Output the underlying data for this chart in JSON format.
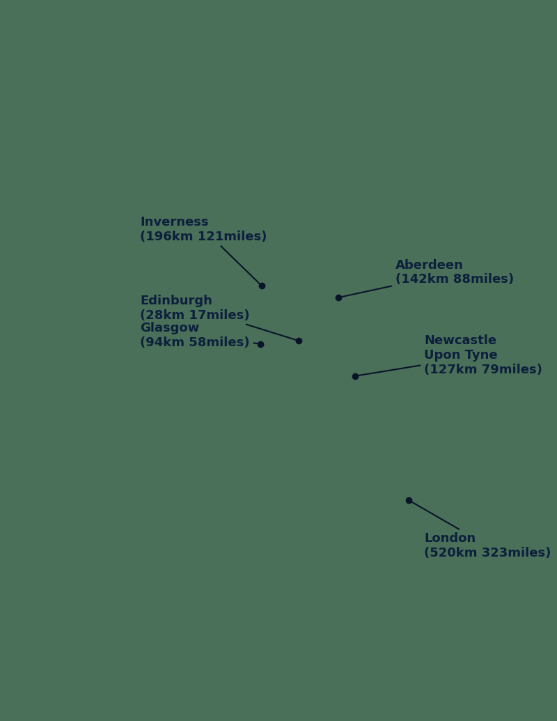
{
  "background_color": "#4a7059",
  "land_color": "#5bcece",
  "land_edge_color": "#3aadad",
  "annotation_color": "#0d1f3c",
  "dot_color": "#0a1428",
  "figsize": [
    8.0,
    10.35
  ],
  "dpi": 100,
  "locations": [
    {
      "name": "Inverness",
      "label_line1": "Inverness",
      "label_line2": "(196km 121miles)",
      "lon": -4.22,
      "lat": 57.48,
      "text_lon": -7.6,
      "text_lat": 59.05,
      "text_ha": "left",
      "fontsize": 13
    },
    {
      "name": "Aberdeen",
      "label_line1": "Aberdeen",
      "label_line2": "(142km 88miles)",
      "lon": -2.09,
      "lat": 57.15,
      "text_lon": -0.5,
      "text_lat": 57.85,
      "text_ha": "left",
      "fontsize": 13
    },
    {
      "name": "Edinburgh",
      "label_line1": "Edinburgh",
      "label_line2": "(28km 17miles)",
      "lon": -3.19,
      "lat": 55.95,
      "text_lon": -7.6,
      "text_lat": 56.85,
      "text_ha": "left",
      "fontsize": 13
    },
    {
      "name": "Glasgow",
      "label_line1": "Glasgow",
      "label_line2": "(94km 58miles)",
      "lon": -4.25,
      "lat": 55.86,
      "text_lon": -7.6,
      "text_lat": 56.1,
      "text_ha": "left",
      "fontsize": 13
    },
    {
      "name": "Newcastle Upon Tyne",
      "label_line1": "Newcastle",
      "label_line2": "Upon Tyne",
      "label_line3": "(127km 79miles)",
      "lon": -1.61,
      "lat": 54.97,
      "text_lon": 0.3,
      "text_lat": 55.55,
      "text_ha": "left",
      "fontsize": 13
    },
    {
      "name": "London",
      "label_line1": "London",
      "label_line2": "(520km 323miles)",
      "lon": -0.12,
      "lat": 51.51,
      "text_lon": 0.3,
      "text_lat": 50.25,
      "text_ha": "left",
      "fontsize": 13
    }
  ],
  "xlim": [
    -11.5,
    4.0
  ],
  "ylim": [
    49.0,
    61.8
  ]
}
